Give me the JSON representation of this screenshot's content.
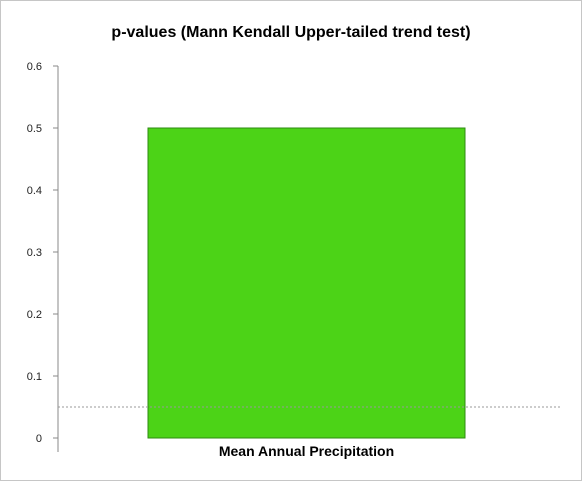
{
  "chart_data": {
    "type": "bar",
    "title": "p-values (Mann Kendall Upper-tailed trend test)",
    "categories": [
      "Mean Annual Precipitation"
    ],
    "values": [
      0.5
    ],
    "ylim": [
      0,
      0.6
    ],
    "yticks": [
      "0",
      "0.1",
      "0.2",
      "0.3",
      "0.4",
      "0.5",
      "0.6"
    ],
    "xlabel": "",
    "ylabel": "",
    "reference_line": {
      "y": 0.05,
      "style": "dashed",
      "color": "#999999"
    },
    "colors": {
      "bar": "#4cd317",
      "bar_border": "#2e8b10",
      "axis": "#888888"
    },
    "grid": false,
    "legend": "none"
  }
}
